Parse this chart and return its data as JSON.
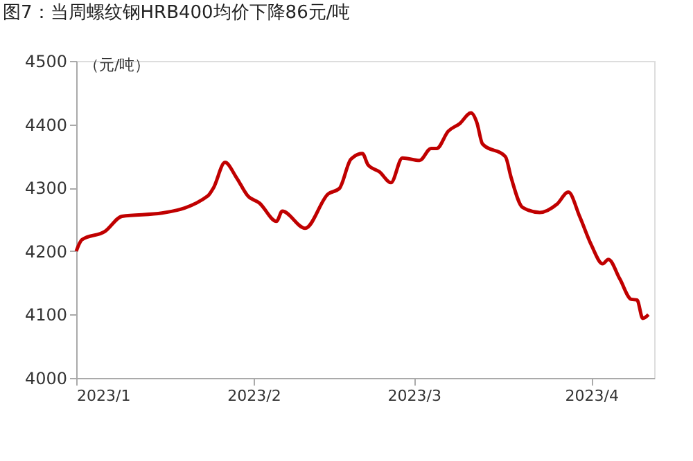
{
  "chart_data": {
    "type": "line",
    "title": "图7：当周螺纹钢HRB400均价下降86元/吨",
    "ylabel": "（元/吨）",
    "x": [
      "2023-01-01",
      "2023-01-02",
      "2023-01-06",
      "2023-01-09",
      "2023-01-16",
      "2023-01-24",
      "2023-01-25",
      "2023-01-27",
      "2023-01-29",
      "2023-01-31",
      "2023-02-02",
      "2023-02-05",
      "2023-02-06",
      "2023-02-10",
      "2023-02-14",
      "2023-02-16",
      "2023-02-18",
      "2023-02-20",
      "2023-02-21",
      "2023-02-23",
      "2023-02-25",
      "2023-02-27",
      "2023-03-02",
      "2023-03-04",
      "2023-03-05",
      "2023-03-07",
      "2023-03-09",
      "2023-03-11",
      "2023-03-12",
      "2023-03-13",
      "2023-03-17",
      "2023-03-18",
      "2023-03-20",
      "2023-03-23",
      "2023-03-26",
      "2023-03-28",
      "2023-03-30",
      "2023-04-01",
      "2023-04-03",
      "2023-04-04",
      "2023-04-06",
      "2023-04-08",
      "2023-04-09",
      "2023-04-10",
      "2023-04-11"
    ],
    "series": [
      {
        "color": "#c00000",
        "values": [
          4200,
          4218,
          4231,
          4255,
          4260,
          4287,
          4300,
          4340,
          4316,
          4287,
          4276,
          4247,
          4263,
          4236,
          4290,
          4299,
          4345,
          4354,
          4336,
          4325,
          4308,
          4347,
          4343,
          4362,
          4362,
          4389,
          4401,
          4418,
          4403,
          4369,
          4349,
          4316,
          4269,
          4261,
          4274,
          4293,
          4254,
          4210,
          4180,
          4187,
          4156,
          4124,
          4123,
          4094,
          4100
        ]
      }
    ],
    "xlim": [
      "2023-01-01",
      "2023-04-12"
    ],
    "xticks": [
      {
        "value": "2023-01-01",
        "label": "2023/1"
      },
      {
        "value": "2023-02-01",
        "label": "2023/2"
      },
      {
        "value": "2023-03-01",
        "label": "2023/3"
      },
      {
        "value": "2023-04-01",
        "label": "2023/4"
      }
    ],
    "ylim": [
      4000,
      4500
    ],
    "yticks": [
      4000,
      4100,
      4200,
      4300,
      4400,
      4500
    ],
    "grid": false,
    "marker": "none",
    "line_style": "solid"
  }
}
